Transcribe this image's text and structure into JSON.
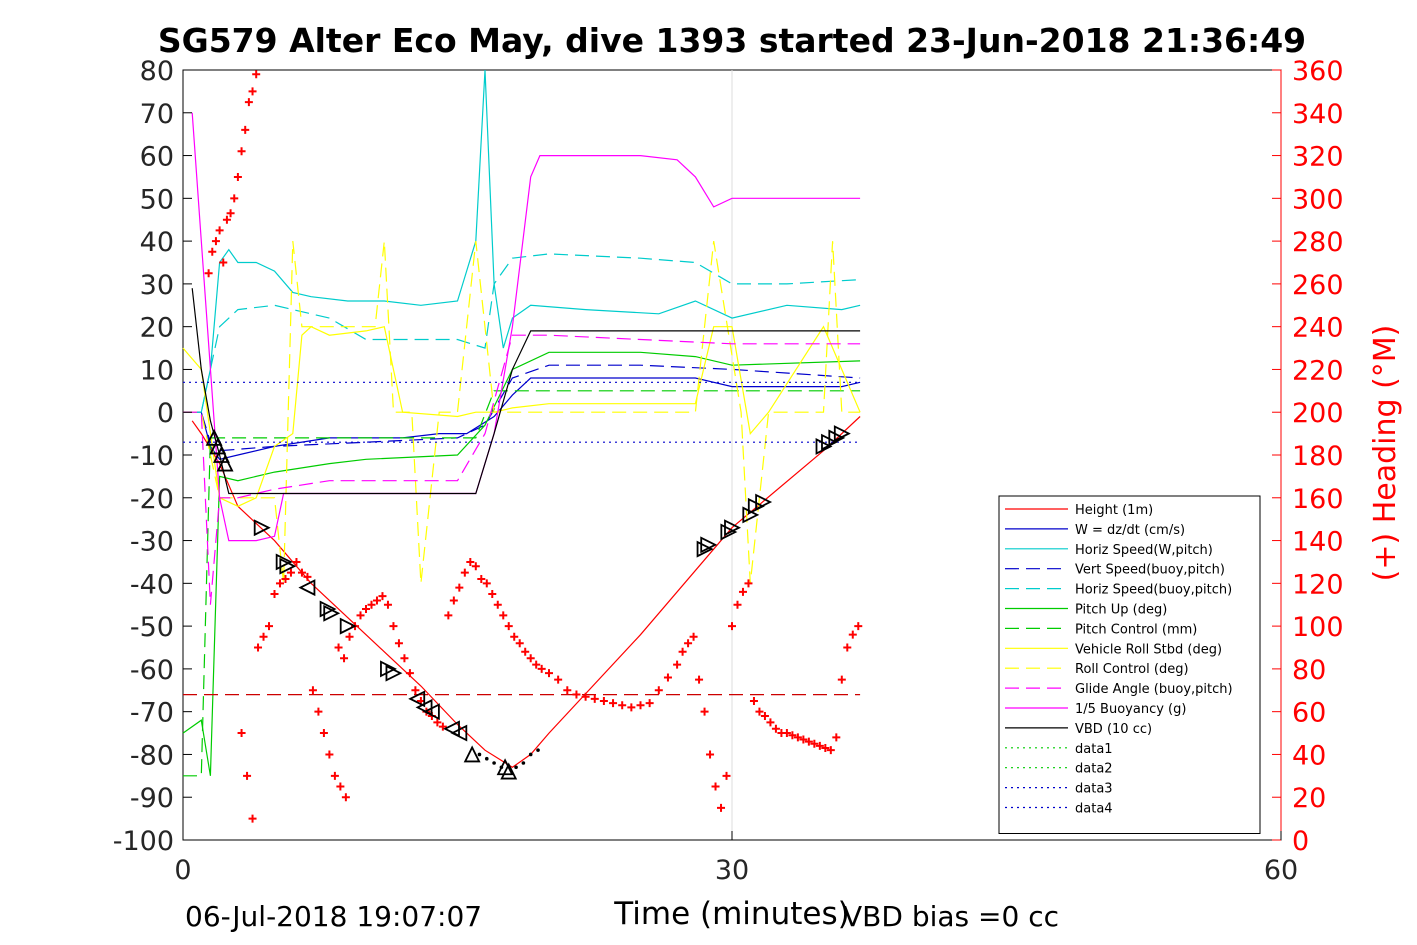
{
  "chart_data": {
    "type": "line",
    "title": "SG579 Alter Eco May, dive 1393 started 23-Jun-2018 21:36:49",
    "xlabel": "Time (minutes)",
    "ylabel_right": "(+) Heading (°M)",
    "xlim": [
      0,
      60
    ],
    "ylim_left": [
      -100,
      80
    ],
    "ylim_right": [
      0,
      360
    ],
    "xticks": [
      "0",
      "30",
      "60"
    ],
    "yticks_left": [
      "80",
      "70",
      "60",
      "50",
      "40",
      "30",
      "20",
      "10",
      "0",
      "-10",
      "-20",
      "-30",
      "-40",
      "-50",
      "-60",
      "-70",
      "-80",
      "-90",
      "-100"
    ],
    "yticks_right": [
      "360",
      "340",
      "320",
      "300",
      "280",
      "260",
      "240",
      "220",
      "200",
      "180",
      "160",
      "140",
      "120",
      "100",
      "80",
      "60",
      "40",
      "20",
      "0"
    ],
    "grid": "x only",
    "legend_position": "lower-right",
    "series": [
      {
        "name": "Height (1m)",
        "color": "#ff0000",
        "style": "solid",
        "x": [
          0.5,
          1,
          2,
          3,
          5,
          7,
          9,
          11,
          13,
          15,
          16.5,
          18,
          19,
          20,
          25,
          30,
          35,
          37
        ],
        "y": [
          -2,
          -5,
          -12,
          -22,
          -30,
          -40,
          -48,
          -56,
          -64,
          -73,
          -79,
          -83,
          -80,
          -75,
          -52,
          -27,
          -9,
          -1
        ]
      },
      {
        "name": "W = dz/dt (cm/s)",
        "color": "#0000cc",
        "style": "solid",
        "x": [
          0,
          1,
          1.5,
          2,
          3,
          5,
          8,
          10,
          12,
          14,
          15.5,
          17,
          18,
          19,
          22,
          26,
          28,
          30,
          33,
          36,
          37
        ],
        "y": [
          0,
          0,
          -8,
          -11,
          -10,
          -8,
          -6,
          -6,
          -6,
          -5,
          -5,
          -1,
          4,
          8,
          8,
          8,
          8,
          6,
          6,
          6,
          7
        ]
      },
      {
        "name": "Horiz Speed(W,pitch)",
        "color": "#00cccc",
        "style": "solid",
        "x": [
          0,
          1,
          1.5,
          2,
          2.5,
          3,
          4,
          5,
          6,
          7,
          9,
          11,
          13,
          15,
          16,
          16.5,
          17,
          17.5,
          18,
          19,
          22,
          26,
          28,
          30,
          33,
          36,
          37
        ],
        "y": [
          0,
          0,
          10,
          35,
          38,
          35,
          35,
          33,
          28,
          27,
          26,
          26,
          25,
          26,
          40,
          80,
          30,
          15,
          22,
          25,
          24,
          23,
          26,
          22,
          25,
          24,
          25
        ]
      },
      {
        "name": "Vert Speed(buoy,pitch)",
        "color": "#0000cc",
        "style": "dashed",
        "x": [
          0,
          1,
          1.5,
          2,
          5,
          10,
          15,
          16.5,
          18,
          20,
          25,
          30,
          37
        ],
        "y": [
          0,
          0,
          -7,
          -9,
          -8,
          -7,
          -6,
          -3,
          8,
          11,
          11,
          10,
          8
        ]
      },
      {
        "name": "Horiz Speed(buoy,pitch)",
        "color": "#00cccc",
        "style": "dashed",
        "x": [
          0,
          1,
          1.5,
          2,
          3,
          5,
          8,
          10,
          15,
          16.5,
          17,
          18,
          20,
          25,
          28,
          30,
          33,
          37
        ],
        "y": [
          0,
          0,
          10,
          20,
          24,
          25,
          22,
          17,
          17,
          15,
          30,
          36,
          37,
          36,
          35,
          30,
          30,
          31
        ]
      },
      {
        "name": "Pitch Up (deg)",
        "color": "#00cc00",
        "style": "solid",
        "x": [
          0,
          1,
          1.5,
          2,
          3,
          5,
          8,
          10,
          15,
          16.5,
          18,
          20,
          25,
          28,
          30,
          37
        ],
        "y": [
          -75,
          -72,
          -85,
          -15,
          -16,
          -14,
          -12,
          -11,
          -10,
          -3,
          10,
          14,
          14,
          13,
          11,
          12
        ]
      },
      {
        "name": "Pitch Control (mm)",
        "color": "#00cc00",
        "style": "dashed",
        "x": [
          0,
          1,
          1.5,
          2,
          5,
          10,
          16,
          17,
          18,
          20,
          30,
          37
        ],
        "y": [
          -85,
          -85,
          -6,
          -6,
          -6,
          -6,
          -6,
          5,
          5,
          5,
          5,
          5
        ]
      },
      {
        "name": "Vehicle Roll Stbd (deg)",
        "color": "#ffff00",
        "style": "solid",
        "x": [
          0,
          1,
          2,
          3,
          4,
          5,
          6,
          6.5,
          7,
          8,
          10,
          11,
          12,
          15,
          16,
          17,
          18,
          20,
          25,
          28,
          29,
          30,
          31,
          32,
          35,
          37
        ],
        "y": [
          15,
          10,
          -20,
          -22,
          -20,
          -8,
          -5,
          18,
          20,
          18,
          19,
          20,
          0,
          -1,
          0,
          0,
          1,
          2,
          2,
          2,
          20,
          20,
          -5,
          0,
          20,
          0
        ]
      },
      {
        "name": "Roll Control (deg)",
        "color": "#ffff00",
        "style": "dashed",
        "x": [
          0,
          1,
          2,
          3,
          5,
          5.5,
          6,
          6.5,
          8,
          10.5,
          11,
          11.5,
          12.5,
          13,
          14,
          15,
          16,
          17,
          18,
          20,
          25,
          28,
          29,
          30.5,
          31,
          32,
          35,
          35.5,
          36,
          37
        ],
        "y": [
          0,
          0,
          -20,
          -20,
          -20,
          -40,
          40,
          20,
          20,
          20,
          40,
          0,
          0,
          -40,
          0,
          0,
          40,
          0,
          0,
          0,
          0,
          0,
          40,
          0,
          -40,
          0,
          0,
          40,
          0,
          0
        ]
      },
      {
        "name": "Glide Angle (buoy,pitch)",
        "color": "#ff00ff",
        "style": "dashed",
        "x": [
          0,
          1,
          1.5,
          2,
          3,
          5,
          8,
          10,
          15,
          16.5,
          18,
          20,
          25,
          30,
          37
        ],
        "y": [
          0,
          0,
          -45,
          -20,
          -20,
          -18,
          -16,
          -16,
          -16,
          -5,
          18,
          18,
          17,
          16,
          16
        ]
      },
      {
        "name": "1/5 Buoyancy (g)",
        "color": "#ff00ff",
        "style": "solid",
        "x": [
          0.5,
          1,
          2,
          2.5,
          3,
          4,
          5,
          5.5,
          10,
          15,
          16,
          17,
          18,
          19,
          19.5,
          20,
          25,
          27,
          28,
          29,
          30,
          35,
          37
        ],
        "y": [
          70,
          40,
          -20,
          -30,
          -30,
          -30,
          -29,
          -19,
          -19,
          -19,
          -19,
          -5,
          20,
          55,
          60,
          60,
          60,
          59,
          55,
          48,
          50,
          50,
          50
        ]
      },
      {
        "name": "VBD (10 cc)",
        "color": "#000000",
        "style": "solid",
        "x": [
          0.5,
          1,
          1.5,
          2,
          2.5,
          3,
          5,
          10,
          15,
          16,
          17,
          18,
          19,
          20,
          25,
          30,
          35,
          37
        ],
        "y": [
          29,
          10,
          -2,
          -10,
          -19,
          -19,
          -19,
          -19,
          -19,
          -19,
          -5,
          10,
          19,
          19,
          19,
          19,
          19,
          19
        ]
      },
      {
        "name": "data1",
        "color": "#00cc00",
        "style": "dotted",
        "x": [],
        "y": []
      },
      {
        "name": "data2",
        "color": "#00cc00",
        "style": "dotted",
        "x": [],
        "y": []
      },
      {
        "name": "data3",
        "color": "#0000cc",
        "style": "dotted",
        "x": [
          0,
          37
        ],
        "y": [
          7,
          7
        ]
      },
      {
        "name": "data4",
        "color": "#0000cc",
        "style": "dotted",
        "x": [
          0,
          37
        ],
        "y": [
          -7,
          -7
        ]
      },
      {
        "color": "#cc0000",
        "style": "dashed",
        "x": [
          0,
          37
        ],
        "y": [
          -66,
          -66
        ]
      }
    ],
    "heading": {
      "color": "#ff0000",
      "marker": "+",
      "axis": "right",
      "x": [
        1.4,
        1.6,
        1.8,
        2.0,
        2.2,
        2.4,
        2.6,
        2.8,
        3.0,
        3.2,
        3.4,
        3.6,
        3.8,
        4.0,
        3.2,
        3.5,
        3.8,
        4.1,
        4.4,
        4.7,
        5.0,
        5.3,
        5.6,
        5.9,
        6.2,
        6.5,
        6.8,
        7.1,
        7.4,
        7.7,
        8.0,
        8.3,
        8.6,
        8.9,
        8.5,
        8.8,
        9.1,
        9.4,
        9.7,
        10.0,
        10.3,
        10.6,
        10.9,
        11.2,
        11.5,
        11.8,
        12.1,
        12.4,
        12.7,
        13.0,
        13.3,
        13.6,
        13.9,
        14.2,
        14.5,
        14.8,
        15.1,
        15.4,
        15.7,
        16.0,
        16.3,
        16.6,
        16.9,
        17.2,
        17.5,
        17.8,
        18.1,
        18.4,
        18.7,
        19.0,
        19.3,
        19.6,
        20.0,
        20.5,
        21,
        21.5,
        22,
        22.5,
        23,
        23.5,
        24,
        24.5,
        25,
        25.5,
        26,
        26.5,
        27,
        27.3,
        27.6,
        27.9,
        28.2,
        28.5,
        28.8,
        29.1,
        29.4,
        29.7,
        30.0,
        30.3,
        30.6,
        30.9,
        31.2,
        31.5,
        31.8,
        32.1,
        32.4,
        32.7,
        33.0,
        33.3,
        33.6,
        33.9,
        34.2,
        34.5,
        34.8,
        35.1,
        35.4,
        35.7,
        36.0,
        36.3,
        36.6,
        36.9
      ],
      "y": [
        265,
        275,
        280,
        285,
        270,
        290,
        293,
        300,
        310,
        322,
        332,
        345,
        350,
        358,
        50,
        30,
        10,
        90,
        95,
        100,
        115,
        120,
        122,
        125,
        130,
        125,
        123,
        70,
        60,
        50,
        40,
        30,
        25,
        20,
        90,
        85,
        95,
        100,
        105,
        108,
        110,
        112,
        114,
        110,
        100,
        92,
        85,
        78,
        70,
        65,
        60,
        58,
        55,
        53,
        105,
        112,
        118,
        125,
        130,
        128,
        122,
        120,
        115,
        110,
        105,
        100,
        95,
        92,
        88,
        85,
        82,
        80,
        78,
        75,
        70,
        68,
        67,
        66,
        65,
        64,
        63,
        62,
        63,
        64,
        70,
        76,
        82,
        88,
        92,
        95,
        75,
        60,
        40,
        25,
        15,
        30,
        100,
        110,
        116,
        120,
        65,
        60,
        58,
        55,
        52,
        50,
        50,
        49,
        48,
        47,
        46,
        45,
        44,
        43,
        42,
        48,
        75,
        90,
        96,
        100
      ]
    },
    "markers": {
      "color": "#000000",
      "points": [
        {
          "x": 1.7,
          "y": -6,
          "dir": "up"
        },
        {
          "x": 1.9,
          "y": -8,
          "dir": "up"
        },
        {
          "x": 2.1,
          "y": -10,
          "dir": "up"
        },
        {
          "x": 2.3,
          "y": -12,
          "dir": "up"
        },
        {
          "x": 4.3,
          "y": -27,
          "dir": "right"
        },
        {
          "x": 5.5,
          "y": -35,
          "dir": "right"
        },
        {
          "x": 5.7,
          "y": -36,
          "dir": "right"
        },
        {
          "x": 6.8,
          "y": -41,
          "dir": "left"
        },
        {
          "x": 7.9,
          "y": -46,
          "dir": "right"
        },
        {
          "x": 8.1,
          "y": -47,
          "dir": "right"
        },
        {
          "x": 9.0,
          "y": -50,
          "dir": "right"
        },
        {
          "x": 11.2,
          "y": -60,
          "dir": "right"
        },
        {
          "x": 11.5,
          "y": -61,
          "dir": "right"
        },
        {
          "x": 12.8,
          "y": -67,
          "dir": "left"
        },
        {
          "x": 13.2,
          "y": -69,
          "dir": "left"
        },
        {
          "x": 13.6,
          "y": -70,
          "dir": "left"
        },
        {
          "x": 14.7,
          "y": -74,
          "dir": "left"
        },
        {
          "x": 15.1,
          "y": -75,
          "dir": "left"
        },
        {
          "x": 15.8,
          "y": -80,
          "dir": "up"
        },
        {
          "x": 17.6,
          "y": -83,
          "dir": "up"
        },
        {
          "x": 17.8,
          "y": -84,
          "dir": "up"
        },
        {
          "x": 28.5,
          "y": -32,
          "dir": "right"
        },
        {
          "x": 28.7,
          "y": -31,
          "dir": "right"
        },
        {
          "x": 29.8,
          "y": -28,
          "dir": "right"
        },
        {
          "x": 30.0,
          "y": -27,
          "dir": "right"
        },
        {
          "x": 31.0,
          "y": -24,
          "dir": "right"
        },
        {
          "x": 31.3,
          "y": -22,
          "dir": "right"
        },
        {
          "x": 31.7,
          "y": -21,
          "dir": "right"
        },
        {
          "x": 35.0,
          "y": -8,
          "dir": "right"
        },
        {
          "x": 35.3,
          "y": -7,
          "dir": "right"
        },
        {
          "x": 35.7,
          "y": -6,
          "dir": "right"
        },
        {
          "x": 36.0,
          "y": -5,
          "dir": "right"
        }
      ],
      "dots": {
        "x": [
          16.2,
          16.6,
          17.0,
          17.4,
          18.2,
          18.6,
          19.0,
          19.4
        ],
        "y": [
          -80,
          -81,
          -82,
          -83,
          -83,
          -82,
          -80,
          -79
        ]
      }
    }
  },
  "footer": {
    "date": "06-Jul-2018 19:07:07",
    "vbd_bias": "VBD bias =0 cc"
  }
}
